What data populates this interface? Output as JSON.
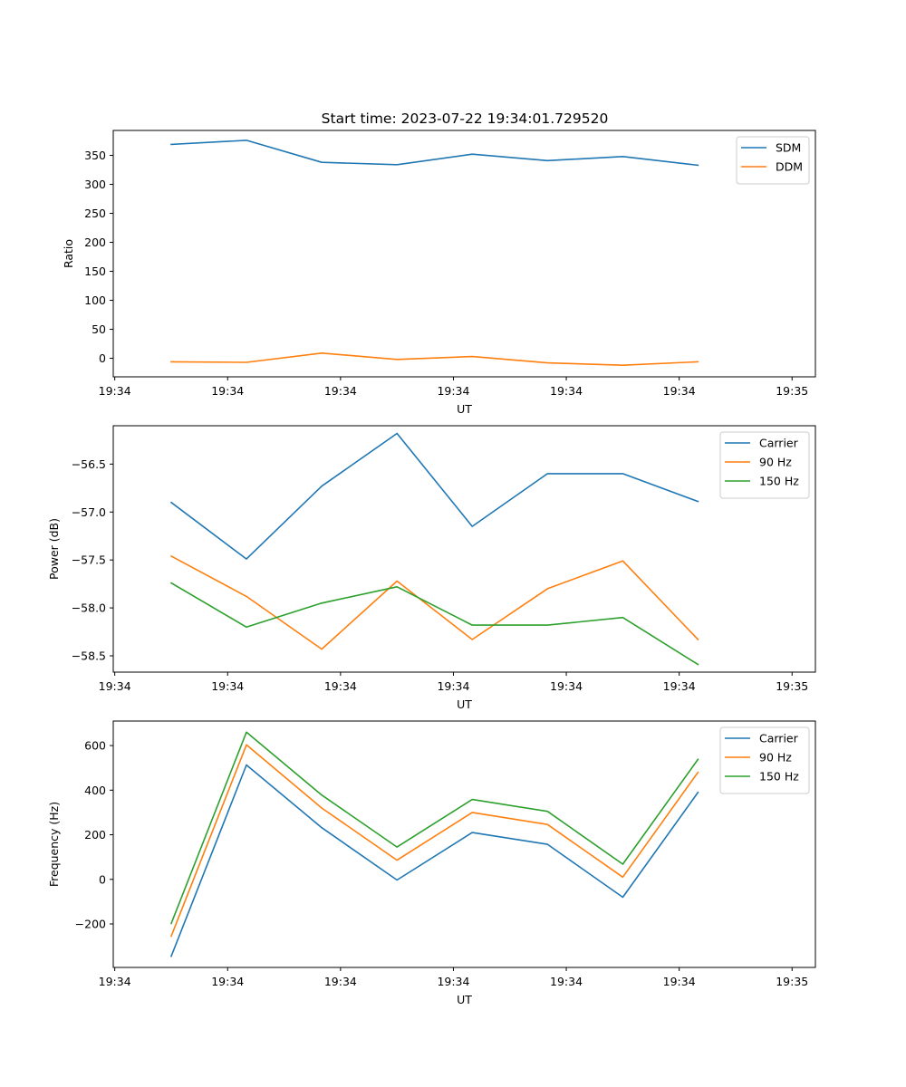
{
  "title": "Start time: 2023-07-22 19:34:01.729520",
  "colors": {
    "blue": "#1f77b4",
    "orange": "#ff7f0e",
    "green": "#2ca02c"
  },
  "chart_data": [
    {
      "type": "line",
      "ylabel": "Ratio",
      "xlabel": "UT",
      "x": [
        0,
        1,
        2,
        3,
        4,
        5,
        6,
        7
      ],
      "xlim": [
        -0.77,
        8.56
      ],
      "xticks": [
        -0.75,
        0.75,
        2.25,
        3.75,
        5.25,
        6.75,
        8.25
      ],
      "xtick_labels": [
        "19:34",
        "19:34",
        "19:34",
        "19:34",
        "19:34",
        "19:34",
        "19:35"
      ],
      "ylim": [
        -32,
        393
      ],
      "yticks": [
        0,
        50,
        100,
        150,
        200,
        250,
        300,
        350
      ],
      "ytick_labels": [
        "0",
        "50",
        "100",
        "150",
        "200",
        "250",
        "300",
        "350"
      ],
      "legend_position": "upper-right",
      "series": [
        {
          "name": "SDM",
          "color": "#1f77b4",
          "values": [
            369,
            376,
            338,
            334,
            352,
            341,
            348,
            333
          ]
        },
        {
          "name": "DDM",
          "color": "#ff7f0e",
          "values": [
            -6,
            -7,
            9,
            -2,
            3,
            -8,
            -12,
            -6
          ]
        }
      ]
    },
    {
      "type": "line",
      "ylabel": "Power (dB)",
      "xlabel": "UT",
      "x": [
        0,
        1,
        2,
        3,
        4,
        5,
        6,
        7
      ],
      "xlim": [
        -0.77,
        8.56
      ],
      "xticks": [
        -0.75,
        0.75,
        2.25,
        3.75,
        5.25,
        6.75,
        8.25
      ],
      "xtick_labels": [
        "19:34",
        "19:34",
        "19:34",
        "19:34",
        "19:34",
        "19:34",
        "19:35"
      ],
      "ylim": [
        -58.67,
        -56.1
      ],
      "yticks": [
        -58.5,
        -58.0,
        -57.5,
        -57.0,
        -56.5
      ],
      "ytick_labels": [
        "−58.5",
        "−58.0",
        "−57.5",
        "−57.0",
        "−56.5"
      ],
      "legend_position": "upper-right",
      "series": [
        {
          "name": "Carrier",
          "color": "#1f77b4",
          "values": [
            -56.9,
            -57.49,
            -56.73,
            -56.18,
            -57.15,
            -56.6,
            -56.6,
            -56.89
          ]
        },
        {
          "name": "90 Hz",
          "color": "#ff7f0e",
          "values": [
            -57.46,
            -57.88,
            -58.43,
            -57.72,
            -58.33,
            -57.8,
            -57.51,
            -58.33
          ]
        },
        {
          "name": "150 Hz",
          "color": "#2ca02c",
          "values": [
            -57.74,
            -58.2,
            -57.95,
            -57.78,
            -58.18,
            -58.18,
            -58.1,
            -58.59
          ]
        }
      ]
    },
    {
      "type": "line",
      "ylabel": "Frequency (Hz)",
      "xlabel": "UT",
      "x": [
        0,
        1,
        2,
        3,
        4,
        5,
        6,
        7
      ],
      "xlim": [
        -0.77,
        8.56
      ],
      "xticks": [
        -0.75,
        0.75,
        2.25,
        3.75,
        5.25,
        6.75,
        8.25
      ],
      "xtick_labels": [
        "19:34",
        "19:34",
        "19:34",
        "19:34",
        "19:34",
        "19:34",
        "19:35"
      ],
      "ylim": [
        -395,
        710
      ],
      "yticks": [
        -200,
        0,
        200,
        400,
        600
      ],
      "ytick_labels": [
        "−200",
        "0",
        "200",
        "400",
        "600"
      ],
      "legend_position": "upper-right",
      "series": [
        {
          "name": "Carrier",
          "color": "#1f77b4",
          "values": [
            -345,
            513,
            232,
            -3,
            210,
            157,
            -80,
            390
          ]
        },
        {
          "name": "90 Hz",
          "color": "#ff7f0e",
          "values": [
            -255,
            603,
            320,
            86,
            300,
            246,
            10,
            480
          ]
        },
        {
          "name": "150 Hz",
          "color": "#2ca02c",
          "values": [
            -198,
            660,
            378,
            145,
            358,
            305,
            68,
            538
          ]
        }
      ]
    }
  ]
}
